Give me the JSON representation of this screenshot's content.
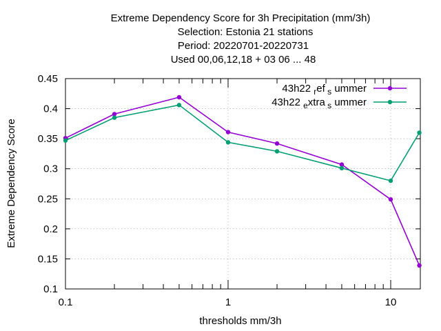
{
  "chart_data": {
    "type": "line",
    "title_lines": [
      "Extreme Dependency Score  for 3h Precipitation (mm/3h)",
      "Selection: Estonia     21 stations",
      "Period: 20220701-20220731",
      "Used  00,06,12,18  + 03 06 ... 48"
    ],
    "xlabel": "thresholds mm/3h",
    "ylabel": "Extreme Dependency Score",
    "x_scale": "log",
    "xlim": [
      0.1,
      15
    ],
    "ylim": [
      0.1,
      0.45
    ],
    "x_ticks": [
      {
        "value": 0.1,
        "label": "0.1"
      },
      {
        "value": 1,
        "label": "1"
      },
      {
        "value": 10,
        "label": "10"
      }
    ],
    "y_ticks": [
      {
        "value": 0.1,
        "label": "0.1"
      },
      {
        "value": 0.15,
        "label": "0.15"
      },
      {
        "value": 0.2,
        "label": "0.2"
      },
      {
        "value": 0.25,
        "label": "0.25"
      },
      {
        "value": 0.3,
        "label": "0.3"
      },
      {
        "value": 0.35,
        "label": "0.35"
      },
      {
        "value": 0.4,
        "label": "0.4"
      },
      {
        "value": 0.45,
        "label": "0.45"
      }
    ],
    "grid": true,
    "legend_position": "top-right",
    "x": [
      0.1,
      0.2,
      0.5,
      1,
      2,
      5,
      10,
      15
    ],
    "series": [
      {
        "legend_main": "43h22",
        "legend_sub": "r",
        "legend_mid": "ef",
        "legend_sub2": "s",
        "legend_tail": "ummer",
        "color": "#9400d3",
        "values": [
          0.351,
          0.391,
          0.419,
          0.361,
          0.342,
          0.307,
          0.249,
          0.139
        ]
      },
      {
        "legend_main": "43h22",
        "legend_sub": "e",
        "legend_mid": "xtra",
        "legend_sub2": "s",
        "legend_tail": "ummer",
        "color": "#009e73",
        "values": [
          0.347,
          0.385,
          0.406,
          0.344,
          0.329,
          0.301,
          0.28,
          0.36
        ]
      }
    ]
  }
}
